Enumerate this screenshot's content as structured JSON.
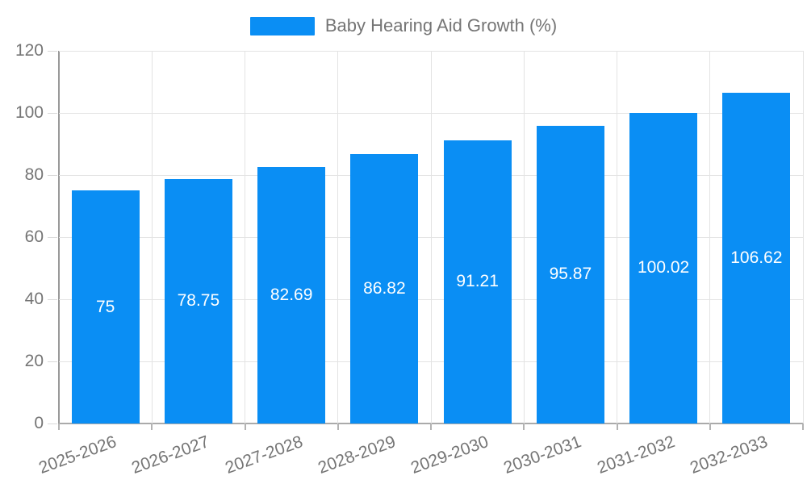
{
  "chart_data": {
    "type": "bar",
    "title": "Baby Hearing Aid Growth (%)",
    "categories": [
      "2025-2026",
      "2026-2027",
      "2027-2028",
      "2028-2029",
      "2029-2030",
      "2030-2031",
      "2031-2032",
      "2032-2033"
    ],
    "values": [
      75,
      78.75,
      82.69,
      86.82,
      91.21,
      95.87,
      100.02,
      106.62
    ],
    "value_labels": [
      "75",
      "78.75",
      "82.69",
      "86.82",
      "91.21",
      "95.87",
      "100.02",
      "106.62"
    ],
    "xlabel": "",
    "ylabel": "",
    "ylim": [
      0,
      120
    ],
    "yticks": [
      0,
      20,
      40,
      60,
      80,
      100,
      120
    ],
    "grid": "both",
    "legend_position": "top-center",
    "x_label_rotation_deg": -20,
    "bar_color": "#0a8ef4",
    "value_label_color": "#ffffff",
    "axis_text_color": "#757575"
  }
}
